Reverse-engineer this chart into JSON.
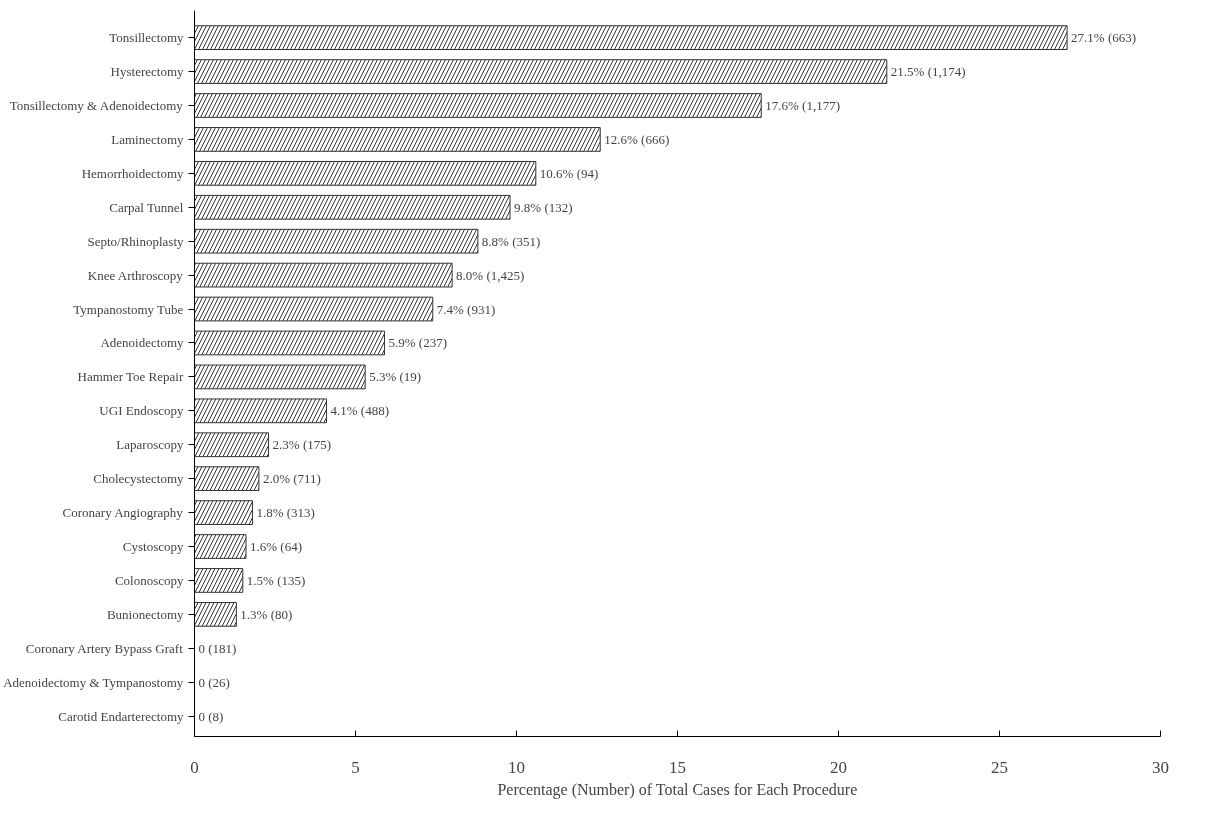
{
  "chart_data": {
    "type": "bar",
    "orientation": "horizontal",
    "xlabel": "Percentage (Number) of Total Cases for Each Procedure",
    "categories": [
      "Tonsillectomy",
      "Hysterectomy",
      "Tonsillectomy & Adenoidectomy",
      "Laminectomy",
      "Hemorrhoidectomy",
      "Carpal Tunnel",
      "Septo/Rhinoplasty",
      "Knee Arthroscopy",
      "Tympanostomy Tube",
      "Adenoidectomy",
      "Hammer Toe Repair",
      "UGI Endoscopy",
      "Laparoscopy",
      "Cholecystectomy",
      "Coronary Angiography",
      "Cystoscopy",
      "Colonoscopy",
      "Bunionectomy",
      "Coronary Artery Bypass Graft",
      "Adenoidectomy & Tympanostomy",
      "Carotid Endarterectomy"
    ],
    "values": [
      27.1,
      21.5,
      17.6,
      12.6,
      10.6,
      9.8,
      8.8,
      8.0,
      7.4,
      5.9,
      5.3,
      4.1,
      2.3,
      2.0,
      1.8,
      1.6,
      1.5,
      1.3,
      0,
      0,
      0
    ],
    "value_labels": [
      "27.1% (663)",
      "21.5% (1,174)",
      "17.6% (1,177)",
      "12.6% (666)",
      "10.6% (94)",
      "9.8% (132)",
      "8.8% (351)",
      "8.0% (1,425)",
      "7.4% (931)",
      "5.9% (237)",
      "5.3% (19)",
      "4.1% (488)",
      "2.3% (175)",
      "2.0% (711)",
      "1.8% (313)",
      "1.6% (64)",
      "1.5% (135)",
      "1.3% (80)",
      "0 (181)",
      "0 (26)",
      "0 (8)"
    ],
    "color": "#333333",
    "xlim": [
      0,
      30
    ],
    "xticks": [
      0,
      5,
      10,
      15,
      20,
      25,
      30
    ],
    "grid": false
  }
}
